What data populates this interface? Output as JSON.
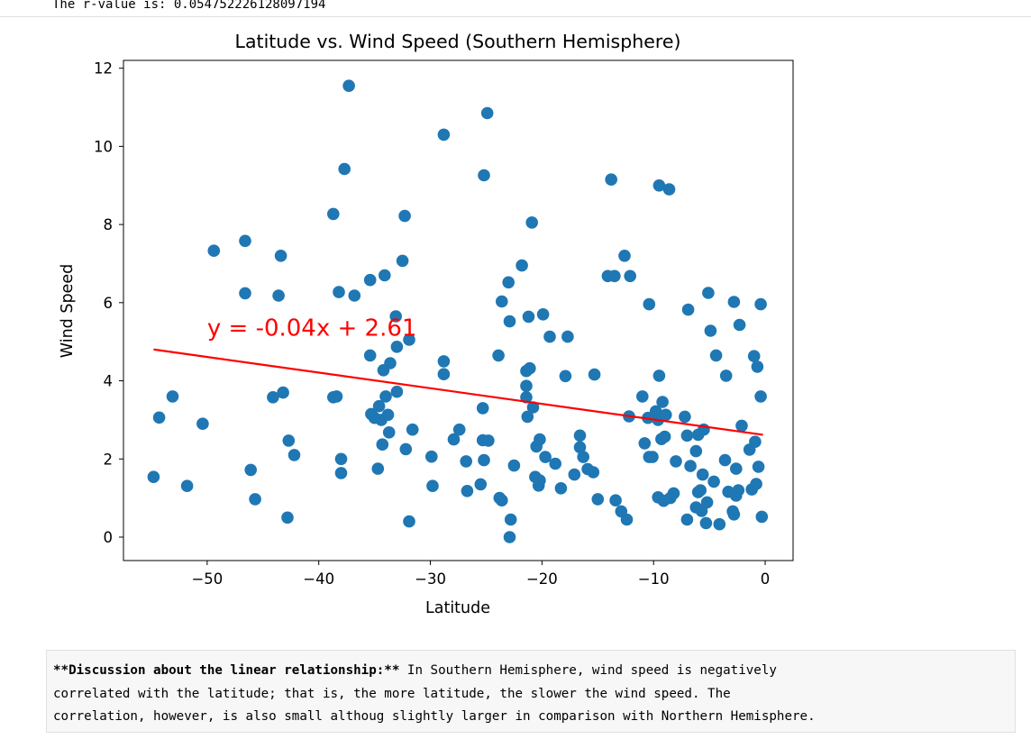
{
  "output_text": "The r-value is: 0.054752226128097194",
  "discussion": {
    "bold_label": "**Discussion about the linear relationship:**",
    "line1": " In Southern Hemisphere, wind speed is negatively",
    "line2": "correlated with the latitude; that is, the more latitude, the slower the wind speed. The",
    "line3": "correlation, however, is also small althoug slightly larger in comparison with Northern Hemisphere."
  },
  "colors": {
    "points": "#1f77b4",
    "regression": "#ff0000"
  },
  "chart_data": {
    "type": "scatter",
    "title": "Latitude vs. Wind Speed (Southern Hemisphere)",
    "xlabel": "Latitude",
    "ylabel": "Wind Speed",
    "xlim": [
      -57.5,
      2.5
    ],
    "ylim": [
      -0.6,
      12.2
    ],
    "xticks": [
      -50,
      -40,
      -30,
      -20,
      -10,
      0
    ],
    "xtick_labels": [
      "−50",
      "−40",
      "−30",
      "−20",
      "−10",
      "0"
    ],
    "yticks": [
      0,
      2,
      4,
      6,
      8,
      10,
      12
    ],
    "ytick_labels": [
      "0",
      "2",
      "4",
      "6",
      "8",
      "10",
      "12"
    ],
    "grid": false,
    "regression": {
      "slope": -0.04,
      "intercept": 2.61,
      "x_range": [
        -54.8,
        -0.2
      ],
      "equation": "y = -0.04x + 2.61",
      "label_at": [
        -50,
        5.15
      ]
    },
    "points": [
      [
        -54.8,
        1.54
      ],
      [
        -54.3,
        3.06
      ],
      [
        -53.1,
        3.6
      ],
      [
        -51.8,
        1.31
      ],
      [
        -50.4,
        2.9
      ],
      [
        -49.4,
        7.33
      ],
      [
        -46.6,
        7.58
      ],
      [
        -46.6,
        6.24
      ],
      [
        -46.1,
        1.72
      ],
      [
        -45.7,
        0.97
      ],
      [
        -44.1,
        3.58
      ],
      [
        -43.6,
        6.18
      ],
      [
        -43.4,
        7.2
      ],
      [
        -43.2,
        3.7
      ],
      [
        -42.8,
        0.5
      ],
      [
        -42.7,
        2.47
      ],
      [
        -42.2,
        2.1
      ],
      [
        -38.7,
        8.27
      ],
      [
        -38.7,
        3.58
      ],
      [
        -38.4,
        3.6
      ],
      [
        -38.2,
        6.27
      ],
      [
        -38.0,
        2.0
      ],
      [
        -38.0,
        1.64
      ],
      [
        -37.7,
        9.42
      ],
      [
        -37.3,
        11.55
      ],
      [
        -36.8,
        6.18
      ],
      [
        -35.4,
        6.58
      ],
      [
        -35.4,
        4.65
      ],
      [
        -35.3,
        3.15
      ],
      [
        -35.0,
        3.05
      ],
      [
        -34.7,
        1.75
      ],
      [
        -34.6,
        3.35
      ],
      [
        -34.4,
        3.0
      ],
      [
        -34.3,
        2.37
      ],
      [
        -34.2,
        4.27
      ],
      [
        -34.1,
        6.7
      ],
      [
        -34.0,
        3.6
      ],
      [
        -33.8,
        3.13
      ],
      [
        -33.7,
        2.68
      ],
      [
        -33.6,
        4.45
      ],
      [
        -33.1,
        5.65
      ],
      [
        -33.0,
        3.72
      ],
      [
        -33.0,
        4.87
      ],
      [
        -32.5,
        7.07
      ],
      [
        -32.3,
        8.22
      ],
      [
        -32.2,
        2.25
      ],
      [
        -31.9,
        5.05
      ],
      [
        -31.9,
        0.4
      ],
      [
        -31.6,
        2.75
      ],
      [
        -29.9,
        2.06
      ],
      [
        -29.8,
        1.31
      ],
      [
        -28.8,
        10.3
      ],
      [
        -28.8,
        4.5
      ],
      [
        -28.8,
        4.17
      ],
      [
        -27.9,
        2.5
      ],
      [
        -27.4,
        2.75
      ],
      [
        -26.8,
        1.94
      ],
      [
        -26.7,
        1.18
      ],
      [
        -25.5,
        1.35
      ],
      [
        -25.3,
        3.3
      ],
      [
        -25.3,
        2.48
      ],
      [
        -25.2,
        1.97
      ],
      [
        -25.2,
        9.26
      ],
      [
        -24.9,
        10.85
      ],
      [
        -24.8,
        2.47
      ],
      [
        -23.9,
        4.65
      ],
      [
        -23.8,
        1.0
      ],
      [
        -23.6,
        6.03
      ],
      [
        -23.6,
        0.94
      ],
      [
        -23.0,
        6.52
      ],
      [
        -22.9,
        0.0
      ],
      [
        -22.9,
        5.52
      ],
      [
        -22.8,
        0.45
      ],
      [
        -22.5,
        1.83
      ],
      [
        -21.8,
        6.95
      ],
      [
        -21.4,
        4.25
      ],
      [
        -21.4,
        3.87
      ],
      [
        -21.4,
        3.58
      ],
      [
        -21.3,
        3.08
      ],
      [
        -21.2,
        5.64
      ],
      [
        -21.1,
        4.32
      ],
      [
        -20.9,
        8.05
      ],
      [
        -20.8,
        3.32
      ],
      [
        -20.6,
        1.54
      ],
      [
        -20.5,
        2.32
      ],
      [
        -20.3,
        1.32
      ],
      [
        -20.2,
        1.45
      ],
      [
        -20.2,
        2.5
      ],
      [
        -19.9,
        5.7
      ],
      [
        -19.7,
        2.05
      ],
      [
        -19.3,
        5.13
      ],
      [
        -18.8,
        1.88
      ],
      [
        -18.3,
        1.25
      ],
      [
        -17.9,
        4.12
      ],
      [
        -17.7,
        5.13
      ],
      [
        -17.1,
        1.6
      ],
      [
        -16.6,
        2.6
      ],
      [
        -16.6,
        2.3
      ],
      [
        -16.3,
        2.05
      ],
      [
        -15.9,
        1.74
      ],
      [
        -15.4,
        1.66
      ],
      [
        -15.3,
        4.16
      ],
      [
        -15.0,
        0.97
      ],
      [
        -14.1,
        6.68
      ],
      [
        -13.8,
        9.15
      ],
      [
        -13.5,
        6.68
      ],
      [
        -13.4,
        0.94
      ],
      [
        -12.9,
        0.66
      ],
      [
        -12.6,
        7.2
      ],
      [
        -12.4,
        0.45
      ],
      [
        -12.2,
        3.09
      ],
      [
        -12.1,
        6.68
      ],
      [
        -11.0,
        3.6
      ],
      [
        -10.8,
        2.4
      ],
      [
        -10.5,
        3.05
      ],
      [
        -10.4,
        5.96
      ],
      [
        -10.4,
        2.05
      ],
      [
        -10.1,
        2.05
      ],
      [
        -9.8,
        3.22
      ],
      [
        -9.6,
        3.0
      ],
      [
        -9.6,
        1.02
      ],
      [
        -9.5,
        9.0
      ],
      [
        -9.5,
        4.13
      ],
      [
        -9.3,
        2.51
      ],
      [
        -9.2,
        3.46
      ],
      [
        -9.1,
        0.93
      ],
      [
        -9.0,
        2.57
      ],
      [
        -8.9,
        3.13
      ],
      [
        -8.6,
        8.9
      ],
      [
        -8.5,
        1.0
      ],
      [
        -8.2,
        1.12
      ],
      [
        -8.0,
        1.94
      ],
      [
        -7.2,
        3.08
      ],
      [
        -7.0,
        0.45
      ],
      [
        -7.0,
        2.6
      ],
      [
        -6.9,
        5.82
      ],
      [
        -6.7,
        1.82
      ],
      [
        -6.2,
        2.2
      ],
      [
        -6.2,
        0.76
      ],
      [
        -6.0,
        1.15
      ],
      [
        -6.0,
        2.62
      ],
      [
        -5.8,
        1.2
      ],
      [
        -5.7,
        0.67
      ],
      [
        -5.6,
        1.6
      ],
      [
        -5.5,
        2.75
      ],
      [
        -5.3,
        0.36
      ],
      [
        -5.2,
        0.89
      ],
      [
        -5.1,
        6.25
      ],
      [
        -4.9,
        5.28
      ],
      [
        -4.6,
        1.42
      ],
      [
        -4.4,
        4.65
      ],
      [
        -4.1,
        0.33
      ],
      [
        -3.6,
        1.97
      ],
      [
        -3.5,
        4.13
      ],
      [
        -3.3,
        1.16
      ],
      [
        -2.9,
        0.66
      ],
      [
        -2.8,
        0.58
      ],
      [
        -2.8,
        6.02
      ],
      [
        -2.6,
        1.06
      ],
      [
        -2.6,
        1.75
      ],
      [
        -2.4,
        1.2
      ],
      [
        -2.3,
        5.43
      ],
      [
        -2.1,
        2.85
      ],
      [
        -1.4,
        2.24
      ],
      [
        -1.2,
        1.22
      ],
      [
        -1.0,
        4.63
      ],
      [
        -0.9,
        2.44
      ],
      [
        -0.8,
        1.36
      ],
      [
        -0.7,
        4.36
      ],
      [
        -0.6,
        1.8
      ],
      [
        -0.4,
        3.6
      ],
      [
        -0.4,
        5.96
      ],
      [
        -0.3,
        0.52
      ]
    ]
  }
}
